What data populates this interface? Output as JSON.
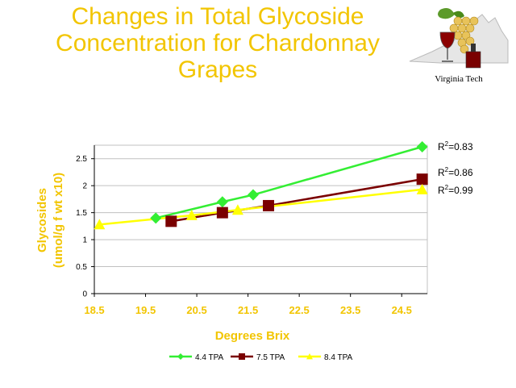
{
  "title": {
    "line1": "Changes in Total Glycoside",
    "line2": "Concentration for Chardonnay",
    "line3": "Grapes"
  },
  "logo": {
    "caption": "Virginia Tech"
  },
  "colors": {
    "title": "#f2c500",
    "series1": "#33ee33",
    "series2": "#7a0000",
    "series3": "#ffff00"
  },
  "chart_data": {
    "type": "line",
    "title": "",
    "xlabel": "Degrees Brix",
    "ylabel_lines": [
      "Glycosides",
      "(umol/g f wt x10)"
    ],
    "xlim": [
      18.5,
      25.0
    ],
    "ylim": [
      0,
      2.75
    ],
    "x_ticks": [
      18.5,
      19.5,
      20.5,
      21.5,
      22.5,
      23.5,
      24.5
    ],
    "y_ticks": [
      0,
      0.5,
      1,
      1.5,
      2,
      2.5
    ],
    "x_tick_labels": [
      "18.5",
      "19.5",
      "20.5",
      "21.5",
      "22.5",
      "23.5",
      "24.5"
    ],
    "y_tick_labels": [
      "0",
      "0.5",
      "1",
      "1.5",
      "2",
      "2.5"
    ],
    "legend_position": "bottom",
    "series": [
      {
        "name": "4.4 TPA",
        "color": "#33ee33",
        "marker": "diamond",
        "r2_label": "=0.83",
        "points": [
          [
            19.7,
            1.4
          ],
          [
            21.0,
            1.7
          ],
          [
            21.6,
            1.83
          ],
          [
            24.9,
            2.72
          ]
        ]
      },
      {
        "name": "7.5 TPA",
        "color": "#7a0000",
        "marker": "square",
        "r2_label": "=0.86",
        "points": [
          [
            20.0,
            1.34
          ],
          [
            21.0,
            1.5
          ],
          [
            21.9,
            1.63
          ],
          [
            24.9,
            2.12
          ]
        ]
      },
      {
        "name": "8.4 TPA",
        "color": "#ffff00",
        "marker": "triangle",
        "r2_label": "=0.99",
        "points": [
          [
            18.6,
            1.28
          ],
          [
            20.4,
            1.45
          ],
          [
            21.3,
            1.55
          ],
          [
            24.9,
            1.93
          ]
        ]
      }
    ]
  }
}
